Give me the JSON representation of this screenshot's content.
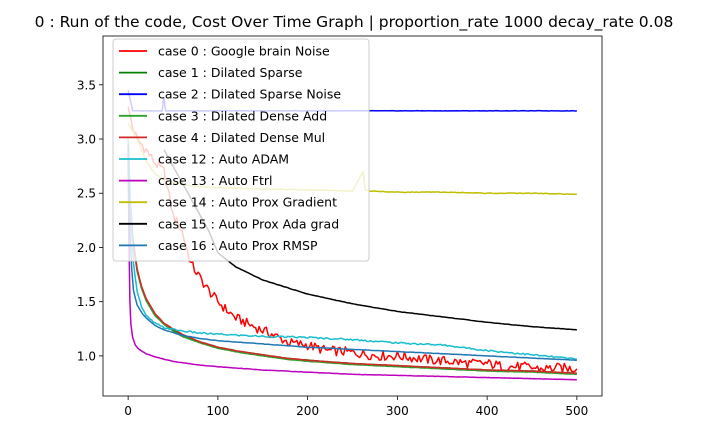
{
  "chart_data": {
    "type": "line",
    "title": "0 : Run of the code, Cost Over Time Graph | proportion_rate 1000 decay_rate 0.08",
    "xlabel": "",
    "ylabel": "",
    "xlim": [
      -28,
      528
    ],
    "ylim": [
      0.63,
      3.95
    ],
    "x_ticks": [
      0,
      100,
      200,
      300,
      400,
      500
    ],
    "y_ticks": [
      1.0,
      1.5,
      2.0,
      2.5,
      3.0,
      3.5
    ],
    "x_tick_labels": [
      "0",
      "100",
      "200",
      "300",
      "400",
      "500"
    ],
    "y_tick_labels": [
      "1.0",
      "1.5",
      "2.0",
      "2.5",
      "3.0",
      "3.5"
    ],
    "grid": false,
    "legend_position": "top-left",
    "series": [
      {
        "name": "case 0 : Google brain Noise",
        "color": "#ff0000",
        "x": [
          0,
          5,
          10,
          20,
          30,
          40,
          50,
          60,
          70,
          80,
          90,
          100,
          110,
          120,
          140,
          160,
          180,
          200,
          220,
          240,
          260,
          280,
          300,
          320,
          340,
          360,
          380,
          400,
          420,
          440,
          460,
          480,
          500
        ],
        "y": [
          3.3,
          3.1,
          3.0,
          2.9,
          2.78,
          2.7,
          2.3,
          2.15,
          1.85,
          1.72,
          1.6,
          1.5,
          1.42,
          1.35,
          1.27,
          1.2,
          1.12,
          1.1,
          1.05,
          1.04,
          1.02,
          1.0,
          1.0,
          0.98,
          0.96,
          0.95,
          0.93,
          0.93,
          0.9,
          0.9,
          0.88,
          0.89,
          0.88
        ]
      },
      {
        "name": "case 1 : Dilated Sparse",
        "color": "#008000",
        "x": [
          0,
          2,
          5,
          10,
          15,
          20,
          30,
          40,
          50,
          60,
          80,
          100,
          125,
          150,
          175,
          200,
          250,
          300,
          350,
          400,
          450,
          500
        ],
        "y": [
          3.0,
          2.5,
          2.1,
          1.8,
          1.63,
          1.52,
          1.38,
          1.3,
          1.24,
          1.19,
          1.13,
          1.08,
          1.04,
          1.01,
          0.98,
          0.96,
          0.93,
          0.91,
          0.89,
          0.87,
          0.86,
          0.84
        ]
      },
      {
        "name": "case 2 : Dilated Sparse Noise",
        "color": "#0000ff",
        "x": [
          0,
          5,
          20,
          38,
          39,
          40,
          41,
          42,
          100,
          200,
          300,
          400,
          500
        ],
        "y": [
          3.45,
          3.26,
          3.26,
          3.26,
          3.35,
          3.38,
          3.3,
          3.26,
          3.26,
          3.26,
          3.26,
          3.26,
          3.26
        ]
      },
      {
        "name": "case 3 : Dilated Dense Add",
        "color": "#2ca02c",
        "x": [
          0,
          2,
          5,
          10,
          15,
          20,
          30,
          40,
          50,
          60,
          80,
          100,
          125,
          150,
          175,
          200,
          250,
          300,
          350,
          400,
          450,
          500
        ],
        "y": [
          2.95,
          2.45,
          2.08,
          1.78,
          1.62,
          1.51,
          1.37,
          1.29,
          1.23,
          1.18,
          1.12,
          1.07,
          1.03,
          1.0,
          0.97,
          0.95,
          0.92,
          0.9,
          0.88,
          0.86,
          0.85,
          0.83
        ]
      },
      {
        "name": "case 4 : Dilated Dense Mul",
        "color": "#d62728",
        "x": [
          0,
          2,
          5,
          10,
          15,
          20,
          30,
          40,
          50,
          60,
          80,
          100,
          125,
          150,
          175,
          200,
          250,
          300,
          350,
          400,
          450,
          500
        ],
        "y": [
          3.0,
          2.5,
          2.1,
          1.8,
          1.64,
          1.53,
          1.39,
          1.3,
          1.25,
          1.2,
          1.13,
          1.08,
          1.04,
          1.01,
          0.98,
          0.96,
          0.93,
          0.91,
          0.89,
          0.87,
          0.86,
          0.84
        ]
      },
      {
        "name": "case 12 : Auto ADAM",
        "color": "#17becf",
        "x": [
          0,
          3,
          6,
          10,
          15,
          20,
          30,
          40,
          60,
          80,
          100,
          150,
          200,
          250,
          300,
          350,
          400,
          450,
          500
        ],
        "y": [
          3.0,
          2.3,
          1.85,
          1.6,
          1.45,
          1.37,
          1.3,
          1.26,
          1.23,
          1.21,
          1.2,
          1.18,
          1.17,
          1.15,
          1.12,
          1.1,
          1.05,
          1.01,
          0.97
        ]
      },
      {
        "name": "case 13 : Auto Ftrl",
        "color": "#bf00bf",
        "x": [
          0,
          1,
          2,
          3,
          5,
          8,
          12,
          20,
          30,
          50,
          75,
          100,
          150,
          200,
          250,
          300,
          350,
          400,
          450,
          500
        ],
        "y": [
          2.9,
          2.0,
          1.5,
          1.3,
          1.17,
          1.1,
          1.06,
          1.02,
          0.99,
          0.95,
          0.92,
          0.9,
          0.87,
          0.85,
          0.83,
          0.82,
          0.81,
          0.8,
          0.79,
          0.78
        ]
      },
      {
        "name": "case 14 : Auto Prox Gradient",
        "color": "#bfbf00",
        "x": [
          0,
          10,
          20,
          30,
          40,
          60,
          80,
          100,
          150,
          200,
          250,
          262,
          264,
          270,
          300,
          350,
          400,
          450,
          500
        ],
        "y": [
          3.15,
          3.0,
          2.8,
          2.68,
          2.62,
          2.58,
          2.56,
          2.55,
          2.54,
          2.53,
          2.52,
          2.7,
          2.53,
          2.52,
          2.51,
          2.51,
          2.5,
          2.5,
          2.49
        ]
      },
      {
        "name": "case 15 : Auto Prox Ada grad",
        "color": "#000000",
        "x": [
          40,
          60,
          80,
          90,
          100,
          120,
          150,
          200,
          250,
          300,
          350,
          400,
          450,
          500
        ],
        "y": [
          2.9,
          2.6,
          2.3,
          2.15,
          1.95,
          1.82,
          1.7,
          1.57,
          1.48,
          1.41,
          1.36,
          1.31,
          1.27,
          1.24
        ]
      },
      {
        "name": "case 16 : Auto Prox RMSP",
        "color": "#1f77b4",
        "x": [
          0,
          2,
          4,
          6,
          10,
          15,
          20,
          30,
          40,
          60,
          80,
          100,
          150,
          200,
          250,
          300,
          350,
          400,
          450,
          500
        ],
        "y": [
          2.95,
          2.15,
          1.8,
          1.6,
          1.47,
          1.4,
          1.35,
          1.28,
          1.24,
          1.19,
          1.16,
          1.14,
          1.11,
          1.08,
          1.06,
          1.04,
          1.02,
          1.0,
          0.98,
          0.96
        ]
      }
    ]
  }
}
